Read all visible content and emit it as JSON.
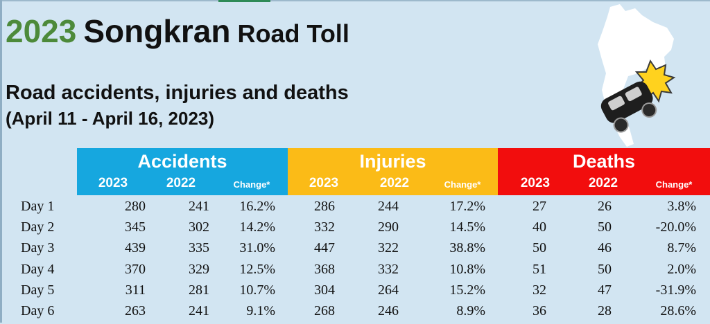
{
  "title": {
    "year": "2023",
    "word1": "Songkran",
    "word2": "Road Toll"
  },
  "subtitle": "Road accidents, injuries and deaths",
  "date_range": "(April 11 - April 16, 2023)",
  "colors": {
    "background": "#d2e5f2",
    "accidents_header": "#16a7df",
    "injuries_header": "#fbbb17",
    "deaths_header": "#f20d0d",
    "title_year": "#4d8a3a"
  },
  "icon": "thailand-map-car-crash-icon",
  "groups": [
    {
      "label": "Accidents",
      "sub": [
        "2023",
        "2022",
        "Change*"
      ]
    },
    {
      "label": "Injuries",
      "sub": [
        "2023",
        "2022",
        "Change*"
      ]
    },
    {
      "label": "Deaths",
      "sub": [
        "2023",
        "2022",
        "Change*"
      ]
    }
  ],
  "chart_data": {
    "type": "table",
    "columns": [
      "",
      "Accidents 2023",
      "Accidents 2022",
      "Accidents Change*",
      "Injuries 2023",
      "Injuries 2022",
      "Injuries Change*",
      "Deaths 2023",
      "Deaths 2022",
      "Deaths Change*"
    ],
    "rows": [
      [
        "Day 1",
        "280",
        "241",
        "16.2%",
        "286",
        "244",
        "17.2%",
        "27",
        "26",
        "3.8%"
      ],
      [
        "Day 2",
        "345",
        "302",
        "14.2%",
        "332",
        "290",
        "14.5%",
        "40",
        "50",
        "-20.0%"
      ],
      [
        "Day 3",
        "439",
        "335",
        "31.0%",
        "447",
        "322",
        "38.8%",
        "50",
        "46",
        "8.7%"
      ],
      [
        "Day 4",
        "370",
        "329",
        "12.5%",
        "368",
        "332",
        "10.8%",
        "51",
        "50",
        "2.0%"
      ],
      [
        "Day 5",
        "311",
        "281",
        "10.7%",
        "304",
        "264",
        "15.2%",
        "32",
        "47",
        "-31.9%"
      ],
      [
        "Day 6",
        "263",
        "241",
        "9.1%",
        "268",
        "246",
        "8.9%",
        "36",
        "28",
        "28.6%"
      ]
    ]
  }
}
